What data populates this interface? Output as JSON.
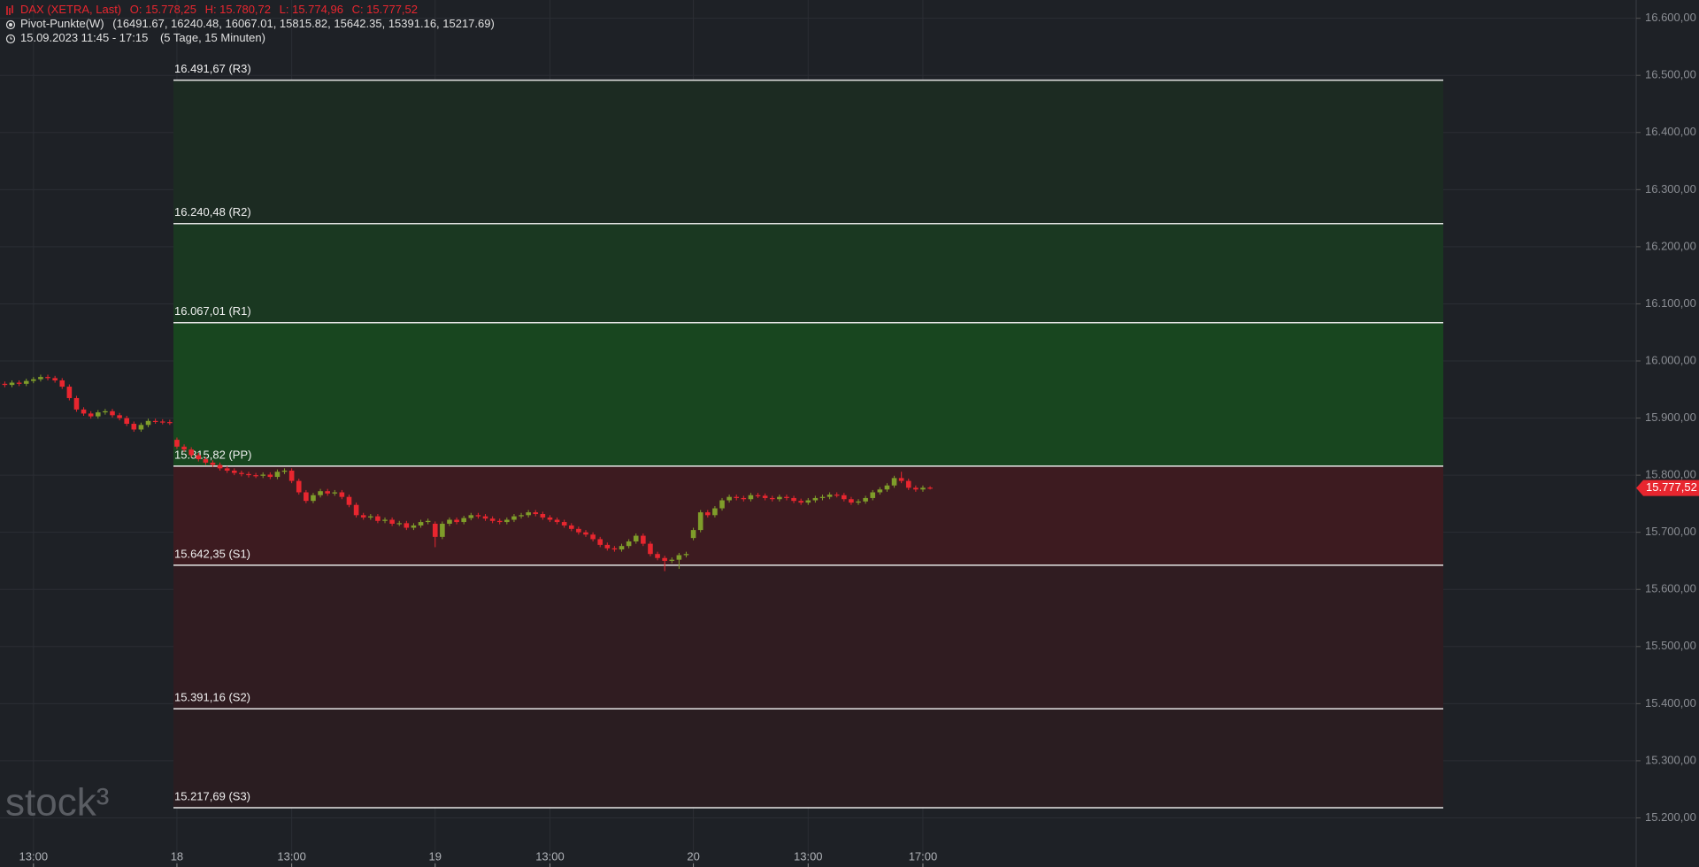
{
  "chart_data": {
    "type": "candlestick",
    "header": {
      "instrument": "DAX (XETRA, Last)",
      "ohlc_labels": [
        "O: 15.778,25",
        "H: 15.780,72",
        "L: 15.774,96",
        "C: 15.777,52"
      ],
      "indicator": "Pivot-Punkte(W)",
      "indicator_values": "(16491.67,  16240.48,  16067.01,  15815.82,  15642.35,  15391.16,  15217.69)",
      "range": "15.09.2023 11:45 - 17:15",
      "range_note": "(5 Tage, 15 Minuten)"
    },
    "watermark": "stock³",
    "categories": [
      null,
      null,
      null,
      null,
      null,
      "13:00",
      null,
      null,
      null,
      null,
      null,
      null,
      null,
      null,
      null,
      null,
      null,
      null,
      null,
      null,
      null,
      null,
      null,
      null,
      null,
      "18",
      null,
      null,
      null,
      null,
      null,
      null,
      null,
      null,
      null,
      null,
      null,
      null,
      null,
      null,
      null,
      "13:00",
      null,
      null,
      null,
      null,
      null,
      null,
      null,
      null,
      null,
      null,
      null,
      null,
      null,
      null,
      null,
      null,
      null,
      null,
      null,
      "19",
      null,
      null,
      null,
      null,
      null,
      null,
      null,
      null,
      null,
      null,
      null,
      null,
      null,
      null,
      null,
      "13:00",
      null,
      null,
      null,
      null,
      null,
      null,
      null,
      null,
      null,
      null,
      null,
      null,
      null,
      null,
      null,
      null,
      null,
      null,
      null,
      "20",
      null,
      null,
      null,
      null,
      null,
      null,
      null,
      null,
      null,
      null,
      null,
      null,
      null,
      null,
      null,
      "13:00",
      null,
      null,
      null,
      null,
      null,
      null,
      null,
      null,
      null,
      null,
      null,
      null,
      null,
      null,
      null,
      "17:00",
      null
    ],
    "open": [
      15962,
      15960,
      15958,
      15962,
      15960,
      15965,
      15968,
      15972,
      15970,
      15966,
      15955,
      15935,
      15915,
      15908,
      15903,
      15910,
      15912,
      15905,
      15900,
      15890,
      15880,
      15888,
      15895,
      15894,
      15893,
      15862,
      15850,
      15845,
      15835,
      15828,
      15822,
      15818,
      15812,
      15808,
      15804,
      15802,
      15800,
      15799,
      15801,
      15797,
      15806,
      15808,
      15790,
      15770,
      15755,
      15765,
      15772,
      15768,
      15770,
      15762,
      15748,
      15730,
      15726,
      15728,
      15720,
      15722,
      15715,
      15716,
      15708,
      15712,
      15718,
      15715,
      15692,
      15715,
      15722,
      15718,
      15725,
      15730,
      15728,
      15724,
      15720,
      15718,
      15722,
      15728,
      15730,
      15735,
      15732,
      15726,
      15722,
      15718,
      15712,
      15706,
      15700,
      15696,
      15688,
      15678,
      15672,
      15670,
      15676,
      15684,
      15694,
      15680,
      15662,
      15655,
      15650,
      15652,
      15660,
      15690,
      15704,
      15735,
      15730,
      15742,
      15756,
      15762,
      15760,
      15758,
      15765,
      15764,
      15760,
      15758,
      15762,
      15760,
      15755,
      15752,
      15756,
      15760,
      15762,
      15766,
      15765,
      15758,
      15752,
      15754,
      15760,
      15770,
      15775,
      15782,
      15795,
      15790,
      15778,
      15775,
      15778.25
    ],
    "high": [
      15966,
      15964,
      15966,
      15966,
      15969,
      15972,
      15976,
      15976,
      15974,
      15970,
      15959,
      15939,
      15919,
      15912,
      15914,
      15916,
      15916,
      15909,
      15904,
      15894,
      15892,
      15899,
      15899,
      15898,
      15897,
      15866,
      15854,
      15849,
      15839,
      15832,
      15826,
      15822,
      15816,
      15812,
      15808,
      15806,
      15804,
      15805,
      15805,
      15810,
      15812,
      15812,
      15794,
      15774,
      15769,
      15776,
      15776,
      15774,
      15774,
      15766,
      15752,
      15734,
      15732,
      15732,
      15726,
      15726,
      15720,
      15720,
      15716,
      15722,
      15724,
      15719,
      15719,
      15726,
      15726,
      15729,
      15734,
      15734,
      15732,
      15728,
      15724,
      15726,
      15732,
      15734,
      15739,
      15739,
      15736,
      15730,
      15726,
      15722,
      15716,
      15710,
      15704,
      15700,
      15692,
      15682,
      15676,
      15680,
      15688,
      15698,
      15698,
      15684,
      15666,
      15659,
      15656,
      15664,
      15666,
      15708,
      15739,
      15739,
      15746,
      15760,
      15766,
      15766,
      15764,
      15769,
      15769,
      15768,
      15764,
      15766,
      15766,
      15764,
      15759,
      15760,
      15764,
      15766,
      15770,
      15770,
      15769,
      15762,
      15758,
      15764,
      15774,
      15779,
      15786,
      15799,
      15806,
      15794,
      15782,
      15782,
      15780.72
    ],
    "low": [
      15956,
      15954,
      15954,
      15956,
      15956,
      15961,
      15964,
      15966,
      15962,
      15951,
      15931,
      15911,
      15904,
      15899,
      15899,
      15906,
      15901,
      15896,
      15886,
      15876,
      15876,
      15884,
      15890,
      15889,
      15888,
      15846,
      15841,
      15831,
      15824,
      15818,
      15814,
      15808,
      15804,
      15800,
      15798,
      15796,
      15795,
      15795,
      15793,
      15793,
      15802,
      15786,
      15766,
      15751,
      15751,
      15761,
      15764,
      15764,
      15758,
      15744,
      15726,
      15722,
      15722,
      15716,
      15716,
      15711,
      15711,
      15704,
      15704,
      15708,
      15714,
      15674,
      15688,
      15711,
      15714,
      15714,
      15721,
      15724,
      15720,
      15716,
      15714,
      15714,
      15718,
      15724,
      15726,
      15728,
      15722,
      15718,
      15714,
      15708,
      15702,
      15696,
      15692,
      15684,
      15674,
      15668,
      15666,
      15666,
      15672,
      15680,
      15676,
      15658,
      15651,
      15632,
      15646,
      15636,
      15656,
      15686,
      15700,
      15726,
      15726,
      15738,
      15752,
      15756,
      15754,
      15754,
      15760,
      15756,
      15754,
      15754,
      15756,
      15751,
      15748,
      15748,
      15752,
      15756,
      15758,
      15761,
      15754,
      15748,
      15748,
      15750,
      15756,
      15766,
      15771,
      15778,
      15786,
      15774,
      15771,
      15771,
      15774.96
    ],
    "close": [
      15960,
      15958,
      15962,
      15960,
      15965,
      15968,
      15972,
      15970,
      15966,
      15955,
      15935,
      15915,
      15908,
      15903,
      15910,
      15912,
      15905,
      15900,
      15890,
      15880,
      15888,
      15895,
      15894,
      15893,
      15892,
      15850,
      15845,
      15835,
      15828,
      15822,
      15818,
      15812,
      15808,
      15804,
      15802,
      15800,
      15799,
      15801,
      15797,
      15806,
      15808,
      15790,
      15770,
      15755,
      15765,
      15772,
      15768,
      15770,
      15762,
      15748,
      15730,
      15726,
      15728,
      15720,
      15722,
      15715,
      15716,
      15708,
      15712,
      15718,
      15720,
      15692,
      15715,
      15722,
      15718,
      15725,
      15730,
      15728,
      15724,
      15720,
      15718,
      15722,
      15728,
      15730,
      15735,
      15732,
      15726,
      15722,
      15718,
      15712,
      15706,
      15700,
      15696,
      15688,
      15678,
      15672,
      15670,
      15676,
      15684,
      15694,
      15680,
      15662,
      15655,
      15650,
      15652,
      15660,
      15662,
      15704,
      15735,
      15730,
      15742,
      15756,
      15762,
      15760,
      15758,
      15765,
      15764,
      15760,
      15758,
      15762,
      15760,
      15755,
      15752,
      15756,
      15760,
      15762,
      15766,
      15765,
      15758,
      15752,
      15754,
      15760,
      15770,
      15775,
      15782,
      15795,
      15790,
      15778,
      15775,
      15778,
      15777.52
    ],
    "up_color": "#7f9d2a",
    "down_color": "#e8262f",
    "pivots": {
      "values": [
        16491.67,
        16240.48,
        16067.01,
        15815.82,
        15642.35,
        15391.16,
        15217.69
      ],
      "value_labels": [
        "16.491,67 (R3)",
        "16.240,48 (R2)",
        "16.067,01 (R1)",
        "15.815,82 (PP)",
        "15.642,35 (S1)",
        "15.391,16 (S2)",
        "15.217,69 (S3)"
      ],
      "band_colors": [
        "#1c2b22",
        "#1a3821",
        "#18461f",
        "#3d1b20",
        "#301c21",
        "#2a1d21"
      ]
    },
    "ylim": [
      15114,
      16632
    ],
    "yticks": [
      {
        "value": 15200,
        "label": "15.200,00"
      },
      {
        "value": 15300,
        "label": "15.300,00"
      },
      {
        "value": 15400,
        "label": "15.400,00"
      },
      {
        "value": 15500,
        "label": "15.500,00"
      },
      {
        "value": 15600,
        "label": "15.600,00"
      },
      {
        "value": 15700,
        "label": "15.700,00"
      },
      {
        "value": 15800,
        "label": "15.800,00"
      },
      {
        "value": 15900,
        "label": "15.900,00"
      },
      {
        "value": 16000,
        "label": "16.000,00"
      },
      {
        "value": 16100,
        "label": "16.100,00"
      },
      {
        "value": 16200,
        "label": "16.200,00"
      },
      {
        "value": 16300,
        "label": "16.300,00"
      },
      {
        "value": 16400,
        "label": "16.400,00"
      },
      {
        "value": 16500,
        "label": "16.500,00"
      },
      {
        "value": 16600,
        "label": "16.600,00"
      }
    ],
    "grid": true,
    "last_price_label": "15.777,52"
  }
}
